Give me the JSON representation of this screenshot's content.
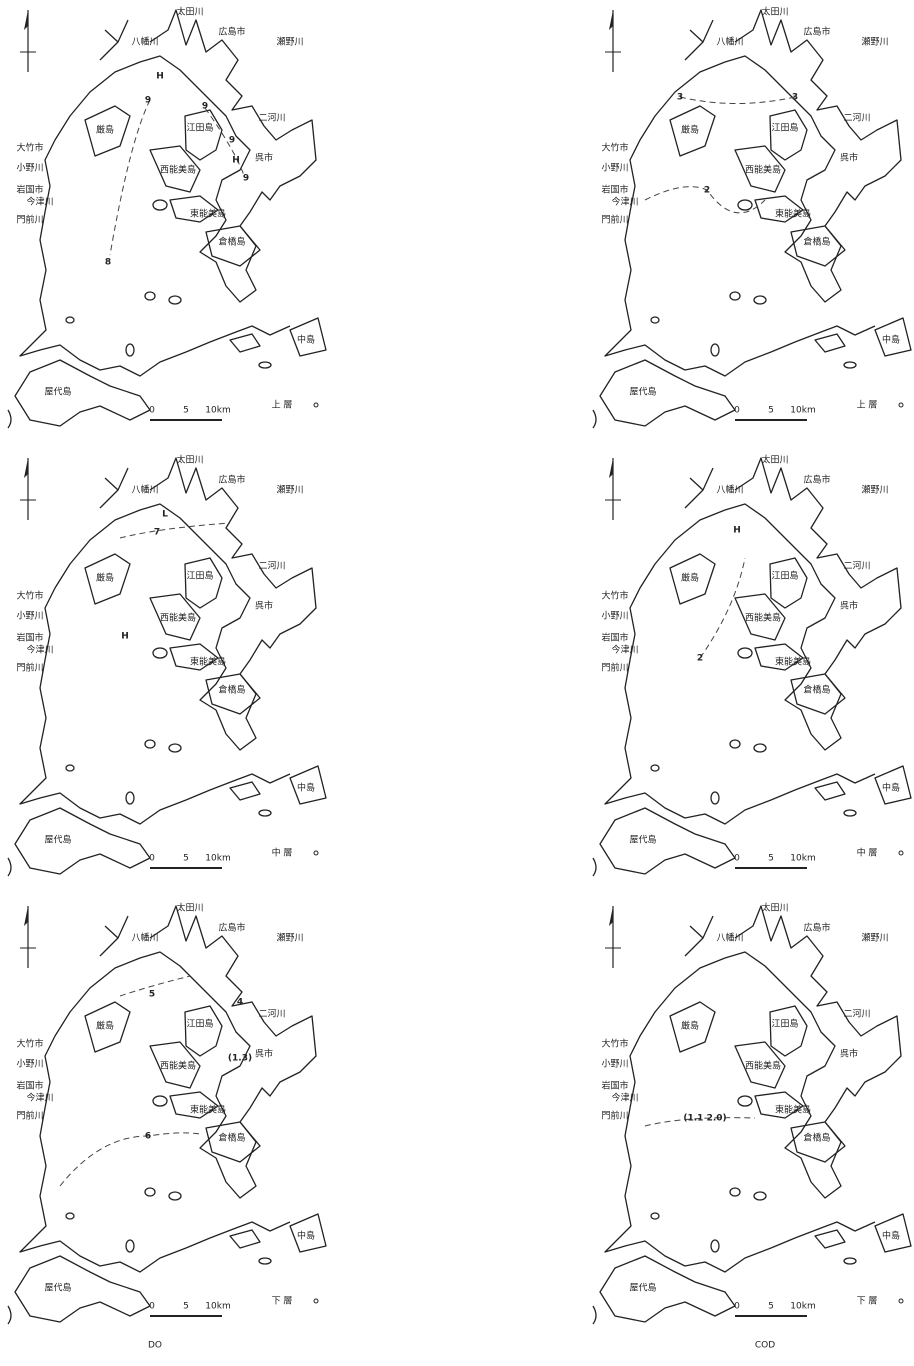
{
  "columns": [
    "DO",
    "COD"
  ],
  "places": [
    "太田川",
    "八幡川",
    "広島市",
    "瀬野川",
    "厳島",
    "江田島",
    "二河川",
    "呉市",
    "大竹市",
    "小野川",
    "岩国市",
    "今津川",
    "門前川",
    "西能美島",
    "東能美島",
    "倉橋島",
    "屋代島",
    "中島"
  ],
  "scale": [
    "0",
    "5",
    "10km"
  ],
  "layers": [
    "上 層",
    "中 層",
    "下 層"
  ],
  "panels": [
    {
      "contour_labels": [
        "H",
        "9",
        "9",
        "9",
        "H",
        "9",
        "8"
      ]
    },
    {
      "contour_labels": [
        "3",
        "3",
        "2"
      ]
    },
    {
      "contour_labels": [
        "L",
        "7",
        "H"
      ]
    },
    {
      "contour_labels": [
        "H",
        "2"
      ]
    },
    {
      "contour_labels": [
        "5",
        "4",
        "(1.3)",
        "6"
      ]
    },
    {
      "contour_labels": [
        "(1.1 2.0)"
      ]
    }
  ]
}
